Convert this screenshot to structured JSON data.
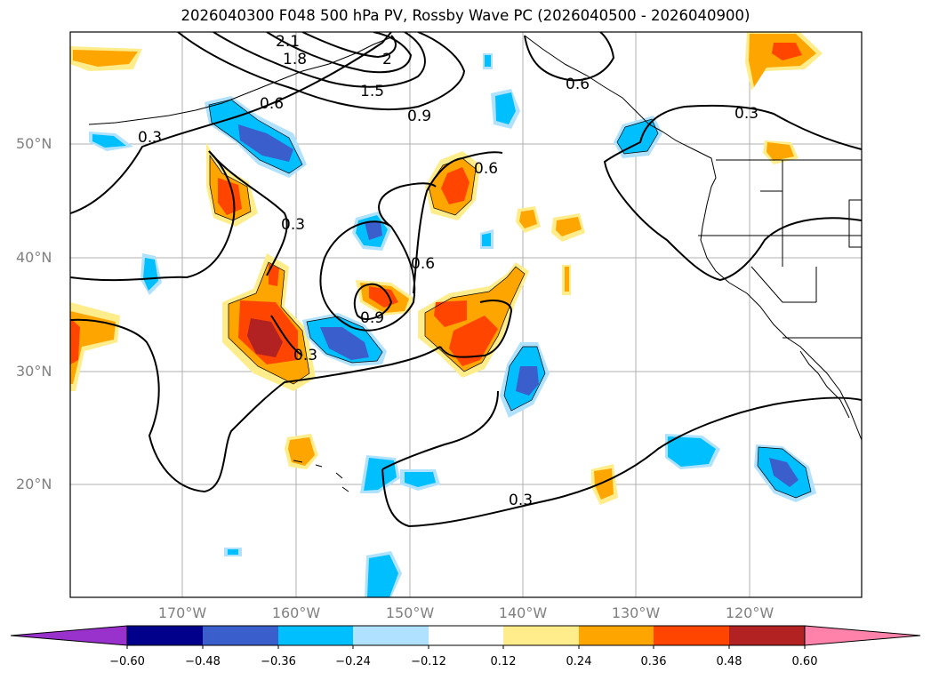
{
  "title": "2026040300 F048 500 hPa PV, Rossby Wave PC (2026040500 - 2026040900)",
  "lat_labels": [
    "50°N",
    "40°N",
    "30°N",
    "20°N"
  ],
  "lon_labels": [
    "170°W",
    "160°W",
    "150°W",
    "140°W",
    "130°W",
    "120°W"
  ],
  "contour_labels": [
    "2.1",
    "1.8",
    "2",
    "1.5",
    "0.9",
    "0.6",
    "0.6",
    "0.3",
    "0.3",
    "0.3",
    "0.6",
    "0.6",
    "0.9",
    "0.3",
    "0.3"
  ],
  "colorbar": {
    "ticks": [
      "−0.60",
      "−0.48",
      "−0.36",
      "−0.24",
      "−0.12",
      "0.12",
      "0.24",
      "0.36",
      "0.48",
      "0.60"
    ],
    "colors": [
      "#9932cc",
      "#00008b",
      "#3a5fcd",
      "#00bfff",
      "#b0e2ff",
      "#ffffff",
      "#ffec8b",
      "#ffa500",
      "#ff4500",
      "#b22222",
      "#ff82ab"
    ]
  }
}
